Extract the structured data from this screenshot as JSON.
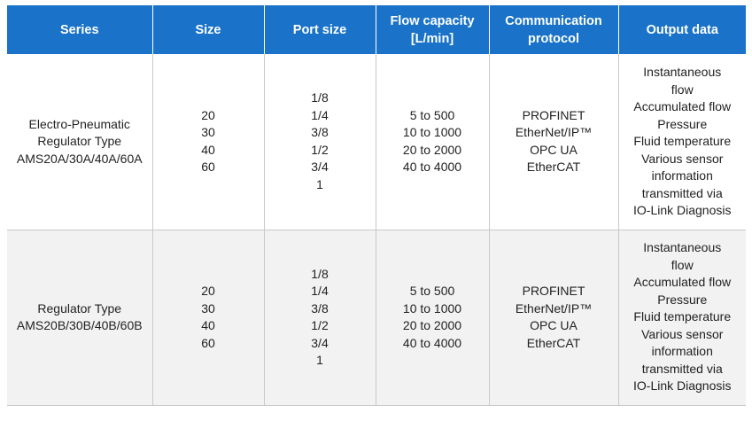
{
  "table": {
    "headers": [
      [
        "Series"
      ],
      [
        "Size"
      ],
      [
        "Port size"
      ],
      [
        "Flow capacity",
        "[L/min]"
      ],
      [
        "Communication",
        "protocol"
      ],
      [
        "Output data"
      ]
    ],
    "rows": [
      {
        "series": [
          "Electro-Pneumatic",
          "Regulator Type",
          "AMS20A/30A/40A/60A"
        ],
        "size": [
          "20",
          "30",
          "40",
          "60"
        ],
        "port_size": [
          "1/8",
          "1/4",
          "3/8",
          "1/2",
          "3/4",
          "1"
        ],
        "flow_capacity": [
          "5 to 500",
          "10 to 1000",
          "20 to 2000",
          "40 to 4000"
        ],
        "protocol": [
          "PROFINET",
          "EtherNet/IP™",
          "OPC UA",
          "EtherCAT"
        ],
        "output_data": [
          "Instantaneous",
          "flow",
          "Accumulated flow",
          "Pressure",
          "Fluid temperature",
          "Various sensor",
          "information",
          "transmitted via",
          "IO-Link Diagnosis"
        ]
      },
      {
        "series": [
          "Regulator Type",
          "AMS20B/30B/40B/60B"
        ],
        "size": [
          "20",
          "30",
          "40",
          "60"
        ],
        "port_size": [
          "1/8",
          "1/4",
          "3/8",
          "1/2",
          "3/4",
          "1"
        ],
        "flow_capacity": [
          "5 to 500",
          "10 to 1000",
          "20 to 2000",
          "40 to 4000"
        ],
        "protocol": [
          "PROFINET",
          "EtherNet/IP™",
          "OPC UA",
          "EtherCAT"
        ],
        "output_data": [
          "Instantaneous",
          "flow",
          "Accumulated flow",
          "Pressure",
          "Fluid temperature",
          "Various sensor",
          "information",
          "transmitted via",
          "IO-Link Diagnosis"
        ]
      }
    ]
  }
}
